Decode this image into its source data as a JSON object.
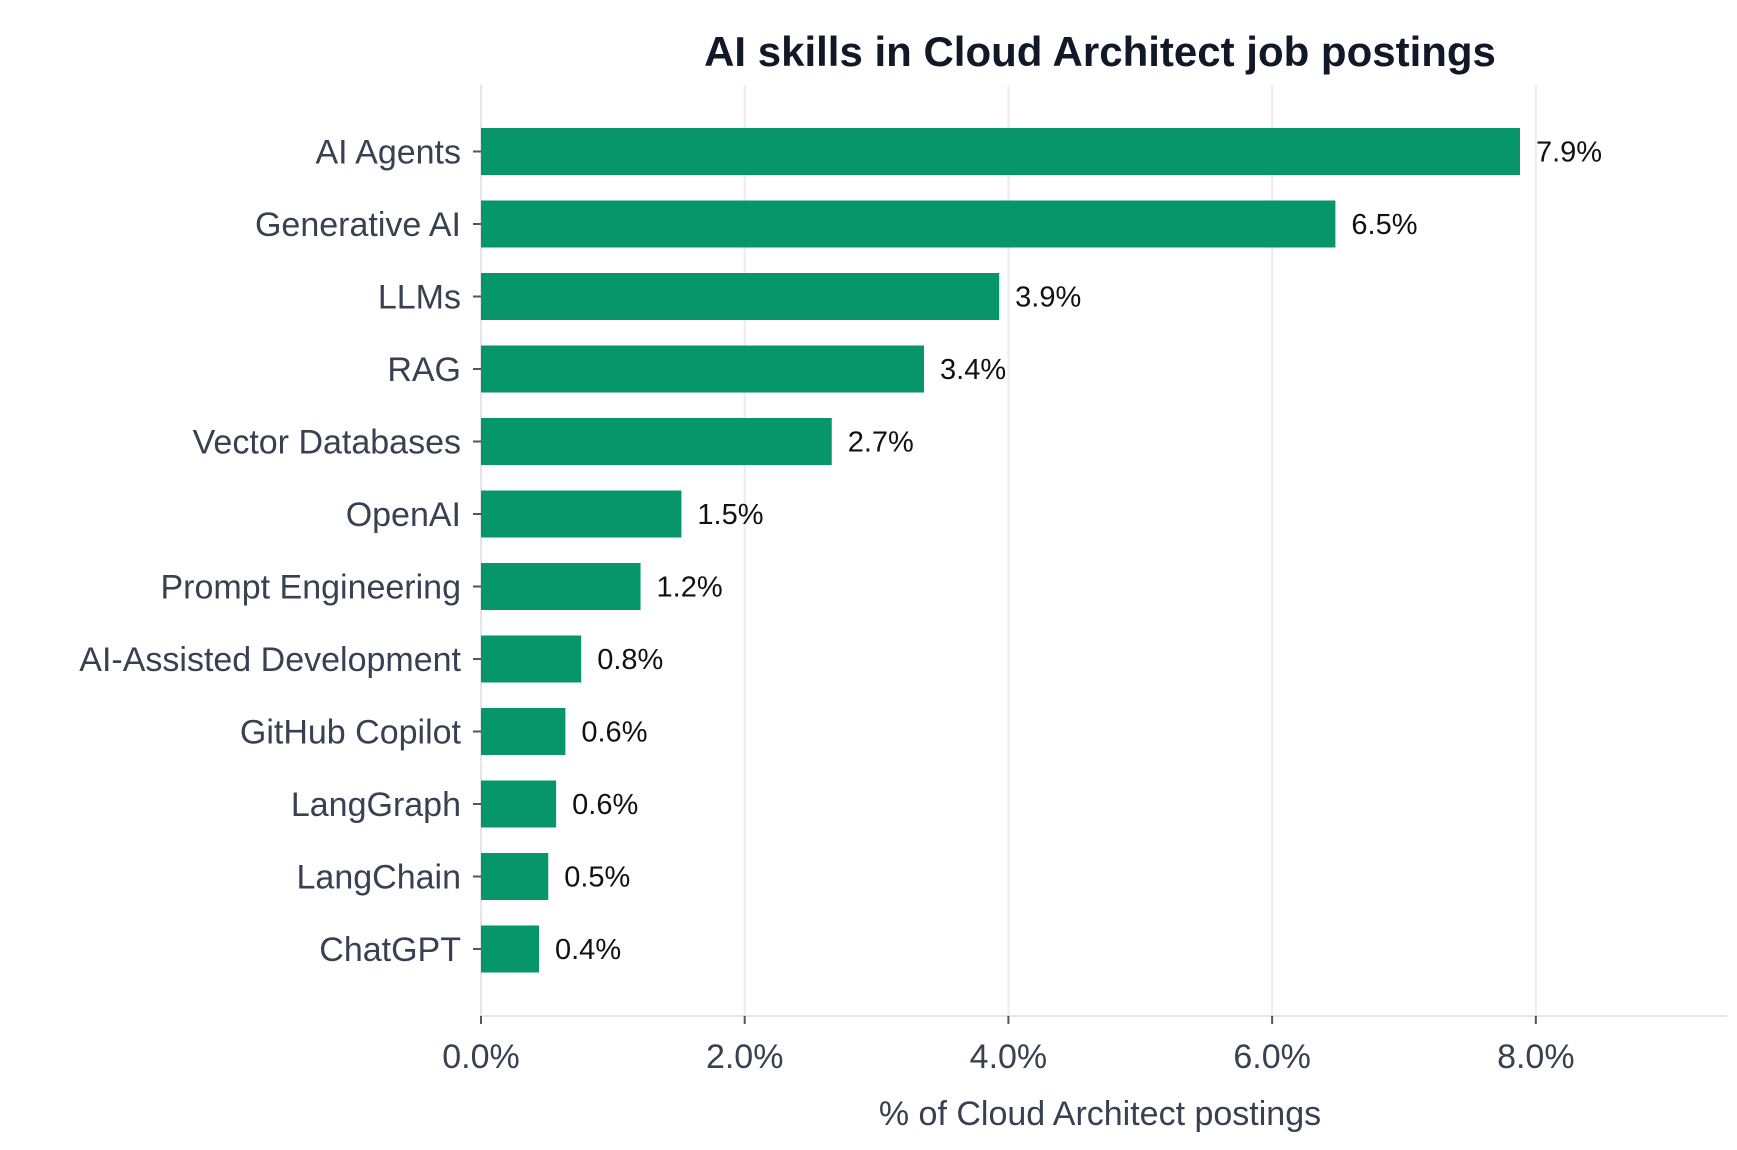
{
  "chart_data": {
    "type": "bar",
    "orientation": "horizontal",
    "title": "AI skills in Cloud Architect job postings",
    "xlabel": "% of Cloud Architect postings",
    "ylabel": "",
    "categories": [
      "AI Agents",
      "Generative AI",
      "LLMs",
      "RAG",
      "Vector Databases",
      "OpenAI",
      "Prompt Engineering",
      "AI-Assisted Development",
      "GitHub Copilot",
      "LangGraph",
      "LangChain",
      "ChatGPT"
    ],
    "values": [
      7.88,
      6.48,
      3.93,
      3.36,
      2.66,
      1.52,
      1.21,
      0.76,
      0.64,
      0.57,
      0.51,
      0.44
    ],
    "value_labels": [
      "7.9%",
      "6.5%",
      "3.9%",
      "3.4%",
      "2.7%",
      "1.5%",
      "1.2%",
      "0.8%",
      "0.6%",
      "0.6%",
      "0.5%",
      "0.4%"
    ],
    "xlim": [
      0,
      9.45
    ],
    "xticks": [
      0,
      2,
      4,
      6,
      8
    ],
    "xtick_labels": [
      "0.0%",
      "2.0%",
      "4.0%",
      "6.0%",
      "8.0%"
    ],
    "grid": "vertical",
    "legend": "none",
    "colors": {
      "bar": "#069669",
      "title": "#111827",
      "axis_text": "#374151",
      "value_text": "#111111",
      "grid": "#ebebeb",
      "axis_line": "#e5e5e5"
    }
  }
}
